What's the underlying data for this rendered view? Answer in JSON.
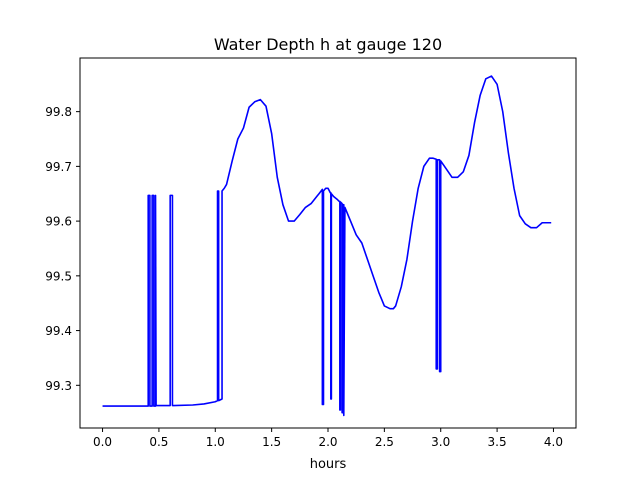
{
  "chart_data": {
    "type": "line",
    "title": "Water Depth h at gauge 120",
    "xlabel": "hours",
    "ylabel": "",
    "xlim": [
      -0.2,
      4.2
    ],
    "ylim": [
      99.222,
      99.898
    ],
    "xticks": [
      0.0,
      0.5,
      1.0,
      1.5,
      2.0,
      2.5,
      3.0,
      3.5,
      4.0
    ],
    "xtick_labels": [
      "0.0",
      "0.5",
      "1.0",
      "1.5",
      "2.0",
      "2.5",
      "3.0",
      "3.5",
      "4.0"
    ],
    "yticks": [
      99.3,
      99.4,
      99.5,
      99.6,
      99.7,
      99.8
    ],
    "ytick_labels": [
      "99.3",
      "99.4",
      "99.5",
      "99.6",
      "99.7",
      "99.8"
    ],
    "grid": false,
    "legend": "none",
    "series": [
      {
        "color": "#0000ff",
        "x": [
          0.0,
          0.405,
          0.405,
          0.42,
          0.42,
          0.44,
          0.44,
          0.455,
          0.455,
          0.47,
          0.47,
          0.475,
          0.6,
          0.6,
          0.62,
          0.62,
          0.63,
          0.8,
          0.9,
          1.0,
          1.02,
          1.02,
          1.03,
          1.03,
          1.06,
          1.06,
          1.08,
          1.1,
          1.15,
          1.2,
          1.25,
          1.3,
          1.35,
          1.4,
          1.45,
          1.5,
          1.55,
          1.6,
          1.65,
          1.7,
          1.75,
          1.8,
          1.85,
          1.9,
          1.92,
          1.95,
          1.95,
          1.96,
          1.96,
          1.98,
          2.0,
          2.02,
          2.025,
          2.025,
          2.03,
          2.03,
          2.05,
          2.08,
          2.1,
          2.105,
          2.105,
          2.11,
          2.11,
          2.125,
          2.125,
          2.135,
          2.135,
          2.14,
          2.14,
          2.15,
          2.2,
          2.25,
          2.3,
          2.35,
          2.4,
          2.45,
          2.5,
          2.55,
          2.58,
          2.6,
          2.65,
          2.7,
          2.75,
          2.8,
          2.85,
          2.9,
          2.93,
          2.96,
          2.96,
          2.97,
          2.97,
          2.99,
          2.99,
          3.0,
          3.0,
          3.05,
          3.1,
          3.15,
          3.2,
          3.25,
          3.3,
          3.35,
          3.4,
          3.45,
          3.5,
          3.55,
          3.6,
          3.65,
          3.7,
          3.75,
          3.8,
          3.85,
          3.9,
          3.95,
          3.98
        ],
        "y": [
          99.262,
          99.262,
          99.647,
          99.647,
          99.262,
          99.262,
          99.647,
          99.647,
          99.262,
          99.262,
          99.647,
          99.263,
          99.263,
          99.647,
          99.647,
          99.263,
          99.263,
          99.264,
          99.266,
          99.27,
          99.272,
          99.655,
          99.655,
          99.272,
          99.275,
          99.655,
          99.66,
          99.667,
          99.71,
          99.75,
          99.77,
          99.808,
          99.818,
          99.822,
          99.81,
          99.76,
          99.68,
          99.63,
          99.6,
          99.6,
          99.612,
          99.625,
          99.632,
          99.645,
          99.65,
          99.658,
          99.265,
          99.265,
          99.655,
          99.66,
          99.66,
          99.652,
          99.652,
          99.275,
          99.275,
          99.65,
          99.645,
          99.64,
          99.636,
          99.636,
          99.255,
          99.255,
          99.635,
          99.632,
          99.25,
          99.25,
          99.63,
          99.63,
          99.245,
          99.625,
          99.6,
          99.575,
          99.56,
          99.53,
          99.5,
          99.47,
          99.445,
          99.44,
          99.44,
          99.445,
          99.48,
          99.53,
          99.6,
          99.66,
          99.7,
          99.715,
          99.715,
          99.713,
          99.33,
          99.33,
          99.712,
          99.712,
          99.325,
          99.325,
          99.71,
          99.695,
          99.68,
          99.68,
          99.69,
          99.72,
          99.78,
          99.83,
          99.86,
          99.865,
          99.85,
          99.8,
          99.725,
          99.66,
          99.61,
          99.595,
          99.588,
          99.588,
          99.597,
          99.597,
          99.597
        ]
      }
    ]
  }
}
